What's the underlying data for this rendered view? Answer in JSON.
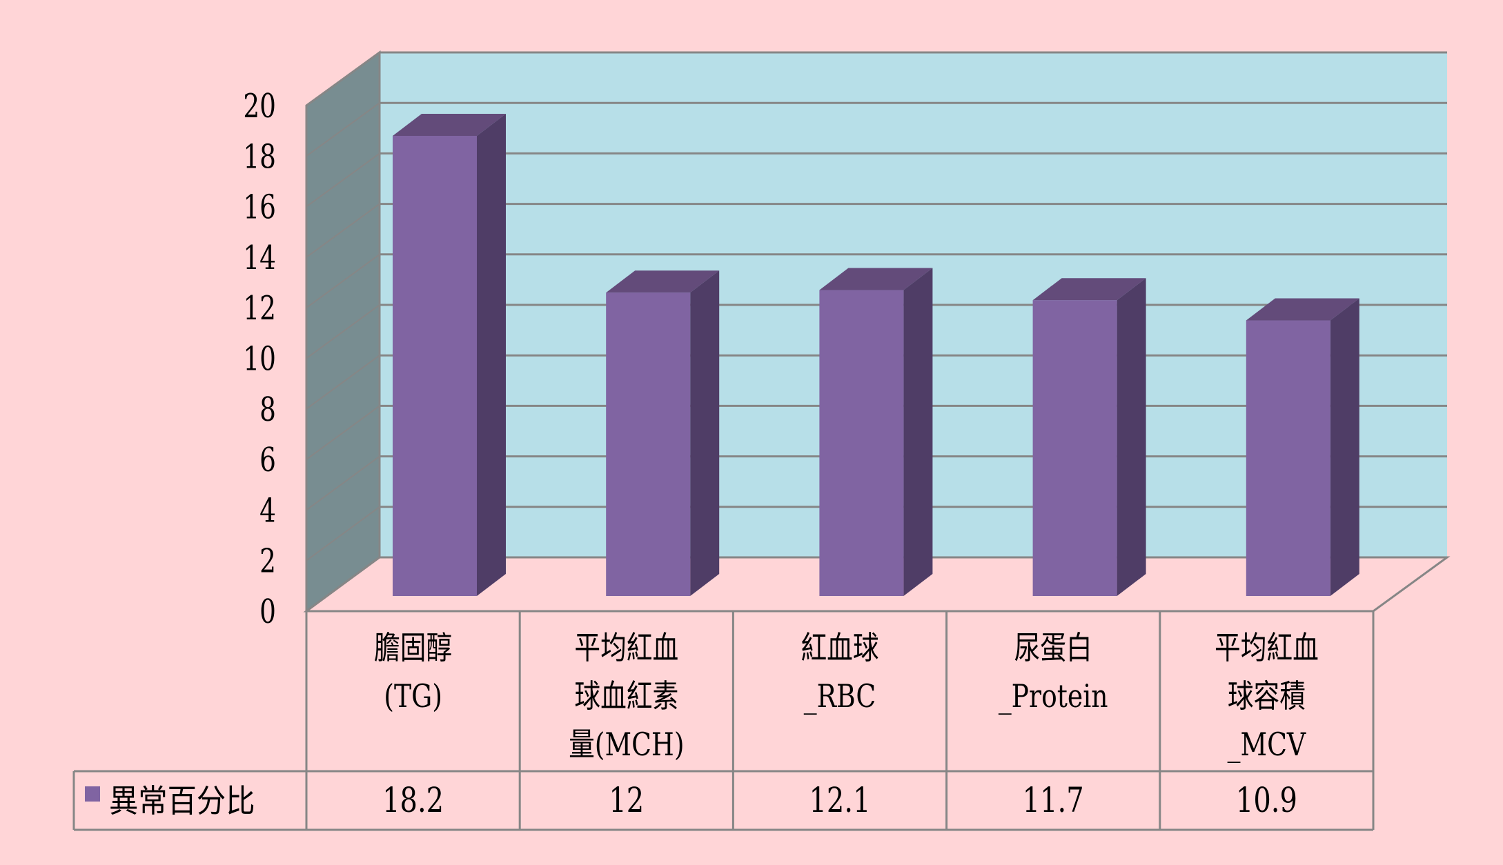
{
  "chart_data": {
    "type": "bar",
    "style": "3d-clustered-column-with-data-table",
    "title": "",
    "xlabel": "",
    "ylabel": "",
    "categories": [
      [
        "膽固醇",
        "(TG)"
      ],
      [
        "平均紅血",
        "球血紅素",
        "量(MCH)"
      ],
      [
        "紅血球",
        "_RBC"
      ],
      [
        "尿蛋白",
        "_Protein"
      ],
      [
        "平均紅血",
        "球容積",
        "_MCV"
      ]
    ],
    "series": [
      {
        "name": "異常百分比",
        "values": [
          18.2,
          12,
          12.1,
          11.7,
          10.9
        ],
        "labels": [
          "18.2",
          "12",
          "12.1",
          "11.7",
          "10.9"
        ]
      }
    ],
    "ylim": [
      0,
      20
    ],
    "yticks": [
      "0",
      "2",
      "4",
      "6",
      "8",
      "10",
      "12",
      "14",
      "16",
      "18",
      "20"
    ],
    "grid": true,
    "legend": "data-table-left",
    "colors": {
      "background": "#ffd5d7",
      "back_wall": "#b7dfe8",
      "side_wall": "#788d91",
      "bar_front": "#8064a2",
      "bar_top": "#634b7a",
      "bar_side": "#4f3d66",
      "grid": "#868686"
    }
  }
}
